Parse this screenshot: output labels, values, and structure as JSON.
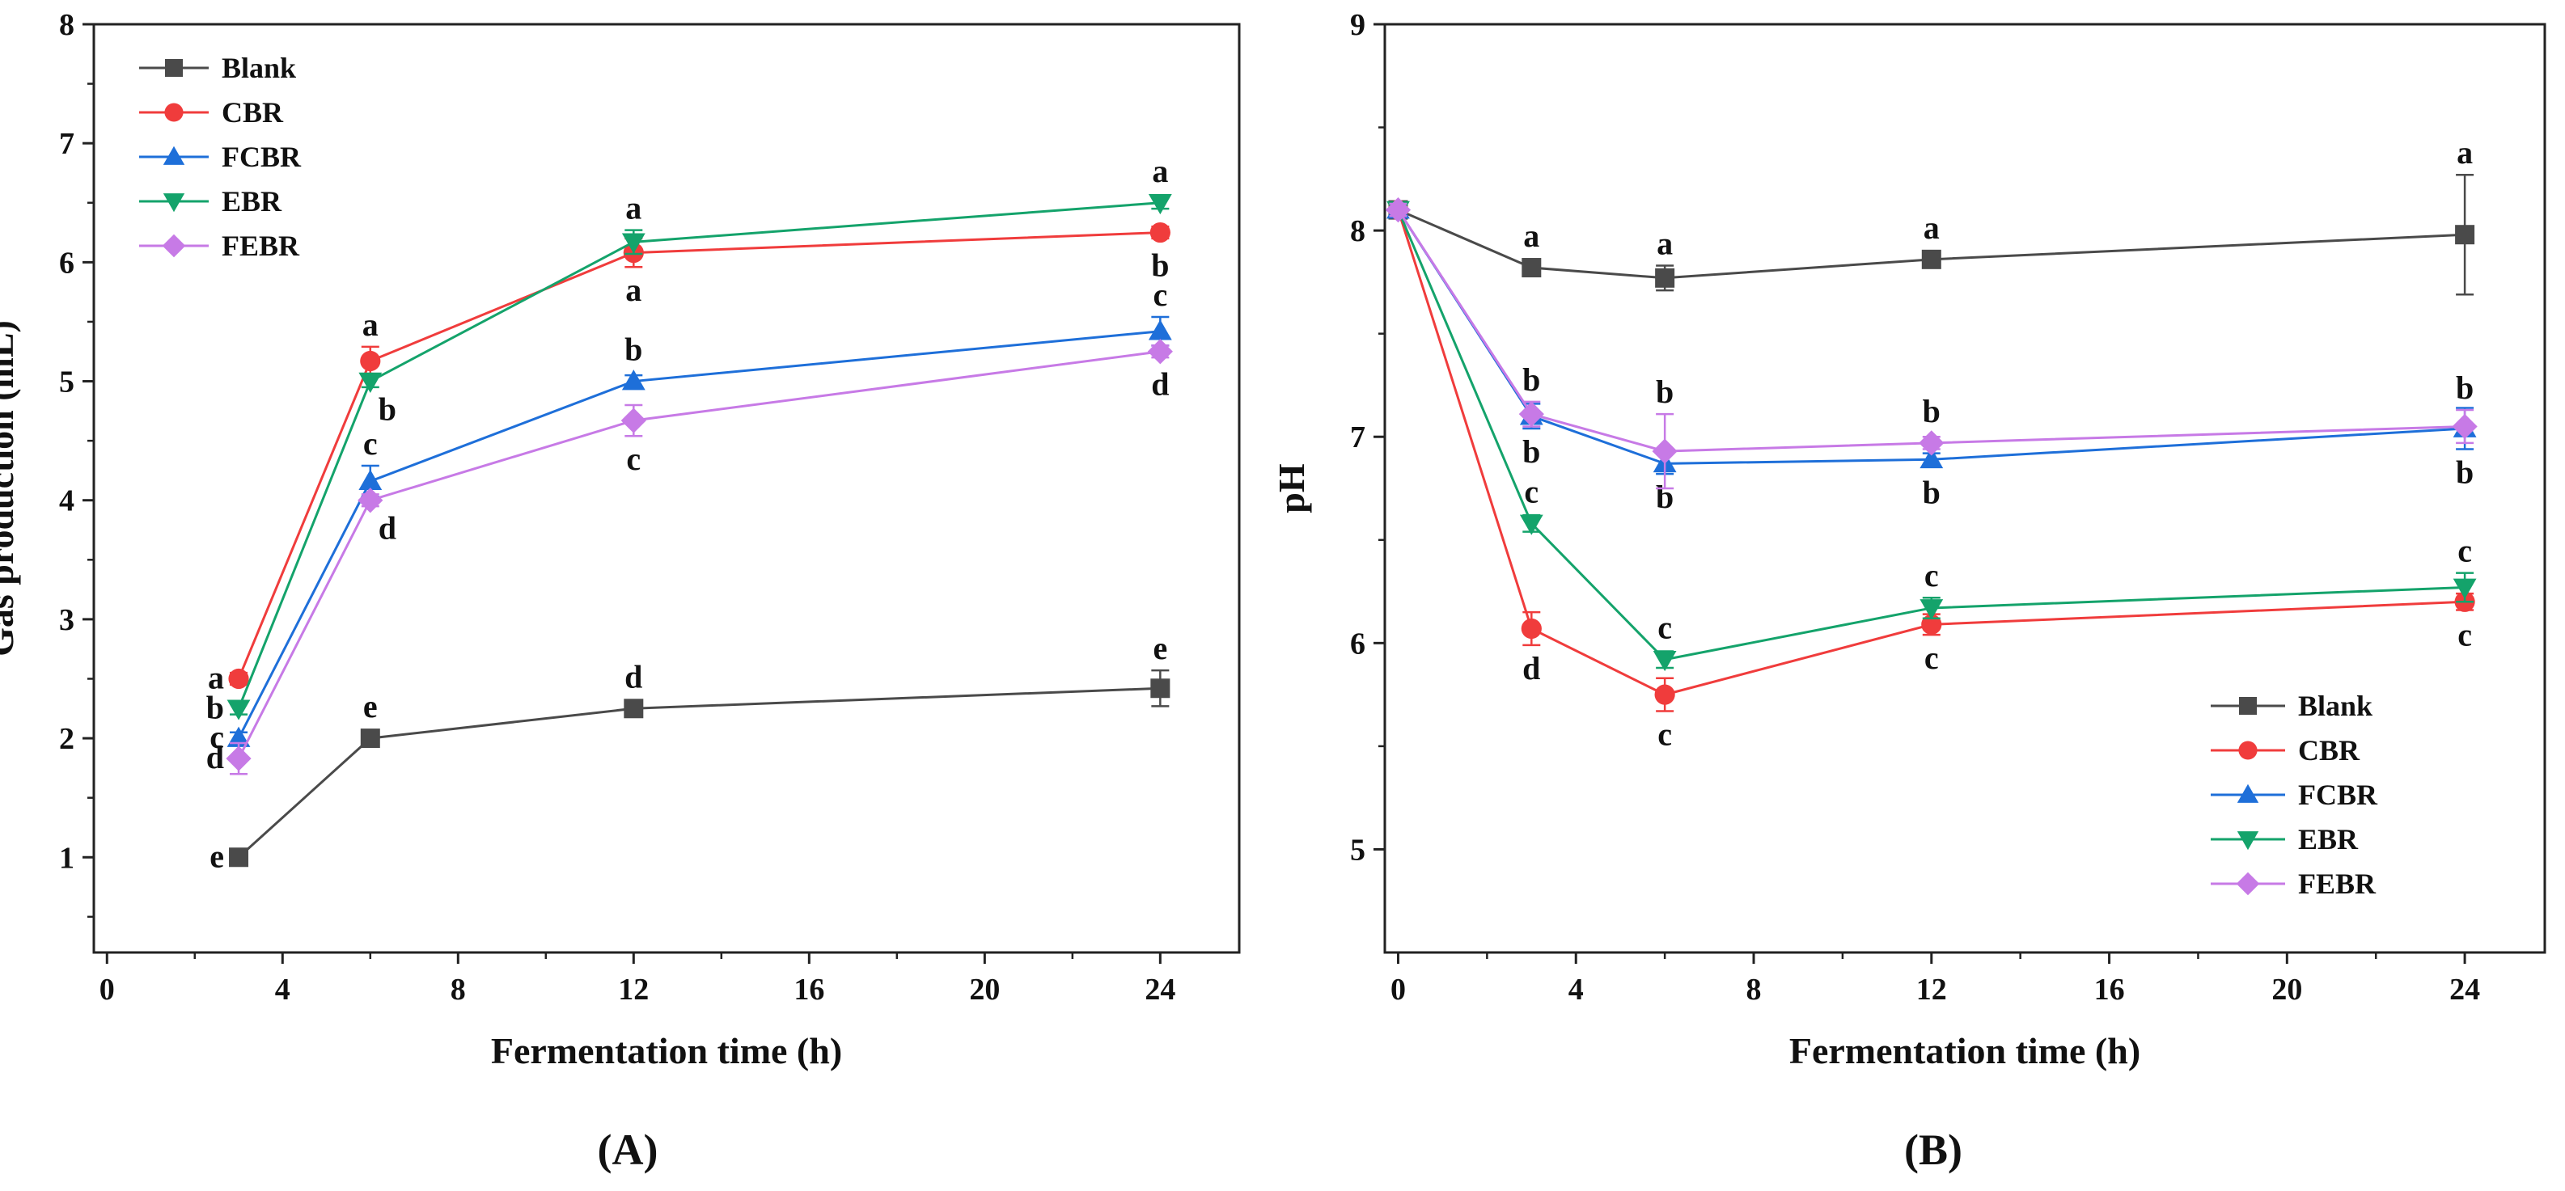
{
  "figure": {
    "panels": [
      "(A)",
      "(B)"
    ]
  },
  "chart_data": [
    {
      "panel_label": "(A)",
      "type": "line",
      "title": "",
      "xlabel": "Fermentation time (h)",
      "ylabel": "Gas production (mL)",
      "xlim": [
        -0.3,
        25.8
      ],
      "ylim": [
        0.2,
        8
      ],
      "xticks": [
        "0",
        "4",
        "8",
        "12",
        "16",
        "20",
        "24"
      ],
      "yticks": [
        "1",
        "2",
        "3",
        "4",
        "5",
        "6",
        "7",
        "8"
      ],
      "legend_position": "top-left",
      "series": [
        {
          "name": "Blank",
          "color": "#4a4a4a",
          "marker": "square",
          "x": [
            3,
            6,
            12,
            24
          ],
          "y": [
            1.0,
            2.0,
            2.25,
            2.42
          ],
          "err": [
            0.03,
            0.05,
            0.05,
            0.15
          ],
          "labels": [
            "e",
            "e",
            "d",
            "e"
          ],
          "label_pos": [
            "left",
            "above",
            "above",
            "above"
          ]
        },
        {
          "name": "CBR",
          "color": "#f03c3c",
          "marker": "circle",
          "x": [
            3,
            6,
            12,
            24
          ],
          "y": [
            2.5,
            5.17,
            6.08,
            6.25
          ],
          "err": [
            0.05,
            0.12,
            0.12,
            0.05
          ],
          "labels": [
            "a",
            "a",
            "a",
            "b"
          ],
          "label_pos": [
            "left",
            "above",
            "below",
            "below"
          ]
        },
        {
          "name": "FCBR",
          "color": "#1e6fd9",
          "marker": "triangle-up",
          "x": [
            3,
            6,
            12,
            24
          ],
          "y": [
            2.0,
            4.16,
            5.0,
            5.42
          ],
          "err": [
            0.05,
            0.13,
            0.05,
            0.12
          ],
          "labels": [
            "c",
            "c",
            "b",
            "c"
          ],
          "label_pos": [
            "left",
            "above",
            "above",
            "above"
          ]
        },
        {
          "name": "EBR",
          "color": "#14a36b",
          "marker": "triangle-down",
          "x": [
            3,
            6,
            12,
            24
          ],
          "y": [
            2.25,
            5.0,
            6.17,
            6.5
          ],
          "err": [
            0.05,
            0.05,
            0.1,
            0.05
          ],
          "labels": [
            "b",
            "b",
            "a",
            "a"
          ],
          "label_pos": [
            "left",
            "below-right",
            "above",
            "above"
          ]
        },
        {
          "name": "FEBR",
          "color": "#c77ae6",
          "marker": "diamond",
          "x": [
            3,
            6,
            12,
            24
          ],
          "y": [
            1.83,
            4.0,
            4.67,
            5.25
          ],
          "err": [
            0.13,
            0.05,
            0.13,
            0.05
          ],
          "labels": [
            "d",
            "d",
            "c",
            "d"
          ],
          "label_pos": [
            "left",
            "below-right",
            "below",
            "below"
          ]
        }
      ]
    },
    {
      "panel_label": "(B)",
      "type": "line",
      "title": "",
      "xlabel": "Fermentation time (h)",
      "ylabel": "pH",
      "xlim": [
        -0.3,
        25.8
      ],
      "ylim": [
        4.5,
        9
      ],
      "xticks": [
        "0",
        "4",
        "8",
        "12",
        "16",
        "20",
        "24"
      ],
      "yticks": [
        "5",
        "6",
        "7",
        "8",
        "9"
      ],
      "legend_position": "bottom-right",
      "series": [
        {
          "name": "Blank",
          "color": "#4a4a4a",
          "marker": "square",
          "x": [
            0,
            3,
            6,
            12,
            24
          ],
          "y": [
            8.1,
            7.82,
            7.77,
            7.86,
            7.98
          ],
          "err": [
            0.03,
            0.03,
            0.06,
            0.03,
            0.29
          ],
          "labels": [
            "",
            "a",
            "a",
            "a",
            "a"
          ],
          "label_pos": [
            "",
            "above",
            "above",
            "above",
            "above"
          ]
        },
        {
          "name": "CBR",
          "color": "#f03c3c",
          "marker": "circle",
          "x": [
            0,
            3,
            6,
            12,
            24
          ],
          "y": [
            8.1,
            6.07,
            5.75,
            6.09,
            6.2
          ],
          "err": [
            0.03,
            0.08,
            0.08,
            0.05,
            0.04
          ],
          "labels": [
            "",
            "d",
            "c",
            "c",
            "c"
          ],
          "label_pos": [
            "",
            "below",
            "below",
            "below",
            "below"
          ]
        },
        {
          "name": "FCBR",
          "color": "#1e6fd9",
          "marker": "triangle-up",
          "x": [
            0,
            3,
            6,
            12,
            24
          ],
          "y": [
            8.1,
            7.1,
            6.87,
            6.89,
            7.04
          ],
          "err": [
            0.03,
            0.06,
            0.05,
            0.03,
            0.1
          ],
          "labels": [
            "",
            "b",
            "b",
            "b",
            "b"
          ],
          "label_pos": [
            "",
            "below",
            "below",
            "below",
            "below"
          ]
        },
        {
          "name": "EBR",
          "color": "#14a36b",
          "marker": "triangle-down",
          "x": [
            0,
            3,
            6,
            12,
            24
          ],
          "y": [
            8.1,
            6.58,
            5.92,
            6.17,
            6.27
          ],
          "err": [
            0.03,
            0.04,
            0.04,
            0.05,
            0.07
          ],
          "labels": [
            "",
            "c",
            "c",
            "c",
            "c"
          ],
          "label_pos": [
            "",
            "above",
            "above",
            "above",
            "above"
          ]
        },
        {
          "name": "FEBR",
          "color": "#c77ae6",
          "marker": "diamond",
          "x": [
            0,
            3,
            6,
            12,
            24
          ],
          "y": [
            8.1,
            7.11,
            6.93,
            6.97,
            7.05
          ],
          "err": [
            0.03,
            0.06,
            0.18,
            0.03,
            0.08
          ],
          "labels": [
            "",
            "b",
            "b",
            "b",
            "b"
          ],
          "label_pos": [
            "",
            "above",
            "above",
            "above",
            "above"
          ]
        }
      ]
    }
  ]
}
